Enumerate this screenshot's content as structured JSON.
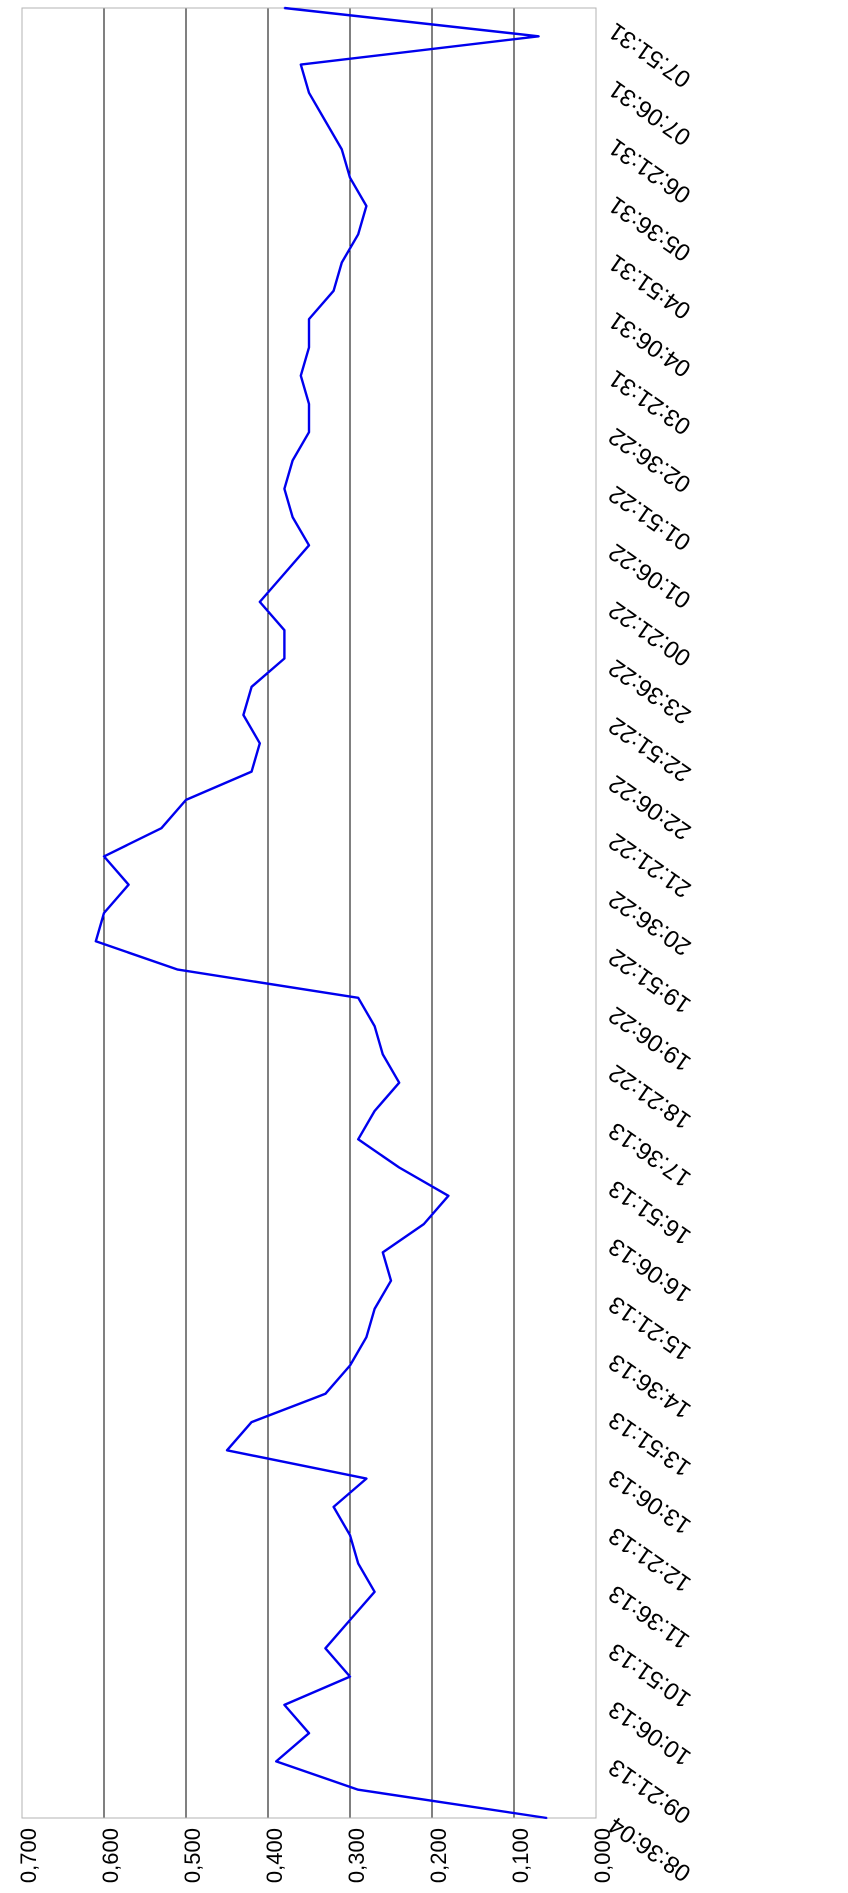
{
  "chart_data": {
    "type": "line",
    "orientation": "rotated-90",
    "title": "",
    "xlabel": "",
    "ylabel": "",
    "ylim": [
      0,
      0.7
    ],
    "y_ticks": [
      {
        "value": 0.0,
        "label": "0,000"
      },
      {
        "value": 0.1,
        "label": "0,100"
      },
      {
        "value": 0.2,
        "label": "0,200"
      },
      {
        "value": 0.3,
        "label": "0,300"
      },
      {
        "value": 0.4,
        "label": "0,400"
      },
      {
        "value": 0.5,
        "label": "0,500"
      },
      {
        "value": 0.6,
        "label": "0,600"
      },
      {
        "value": 0.7,
        "label": "0,700"
      }
    ],
    "x_tick_labels": [
      "08:36:04",
      "09:21:13",
      "10:06:13",
      "10:51:13",
      "11:36:13",
      "12:21:13",
      "13:06:13",
      "13:51:13",
      "14:36:13",
      "15:21:13",
      "16:06:13",
      "16:51:13",
      "17:36:13",
      "18:21:22",
      "19:06:22",
      "19:51:22",
      "20:36:22",
      "21:21:22",
      "22:06:22",
      "22:51:22",
      "23:36:22",
      "00:21:22",
      "01:06:22",
      "01:51:22",
      "02:36:22",
      "03:21:31",
      "04:06:31",
      "04:51:31",
      "05:36:31",
      "06:21:31",
      "07:06:31",
      "07:51:31"
    ],
    "grid": {
      "horizontal": true,
      "vertical": false
    },
    "legend": "none",
    "series": [
      {
        "color": "#0000ee",
        "values": [
          0.06,
          0.29,
          0.39,
          0.35,
          0.38,
          0.3,
          0.33,
          0.3,
          0.27,
          0.29,
          0.3,
          0.32,
          0.28,
          0.45,
          0.42,
          0.33,
          0.3,
          0.28,
          0.27,
          0.25,
          0.26,
          0.21,
          0.18,
          0.24,
          0.29,
          0.27,
          0.24,
          0.26,
          0.27,
          0.29,
          0.51,
          0.61,
          0.6,
          0.57,
          0.6,
          0.53,
          0.5,
          0.42,
          0.41,
          0.43,
          0.42,
          0.38,
          0.38,
          0.41,
          0.38,
          0.35,
          0.37,
          0.38,
          0.37,
          0.35,
          0.35,
          0.36,
          0.35,
          0.35,
          0.32,
          0.31,
          0.29,
          0.28,
          0.3,
          0.31,
          0.33,
          0.35,
          0.36,
          0.07,
          0.38
        ]
      }
    ]
  }
}
